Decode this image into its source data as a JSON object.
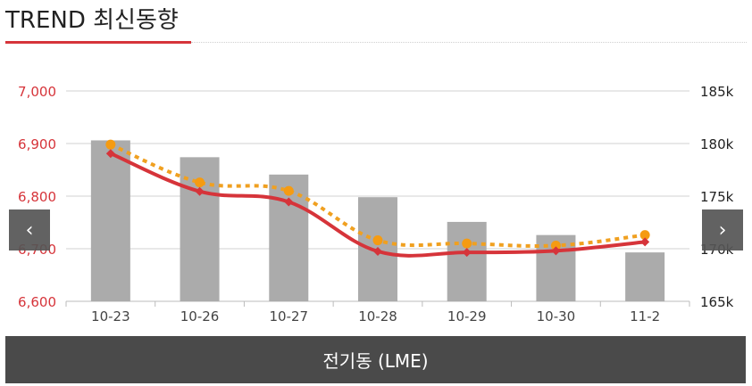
{
  "header": {
    "title": "TREND 최신동향"
  },
  "nav": {
    "prev_icon": "‹",
    "next_icon": "›"
  },
  "footer": {
    "label": "전기동 (LME)"
  },
  "chart_data": {
    "type": "bar+line",
    "categories": [
      "10-23",
      "10-26",
      "10-27",
      "10-28",
      "10-29",
      "10-30",
      "11-2"
    ],
    "y_left": {
      "min": 6600,
      "max": 7000,
      "ticks": [
        "6,600",
        "6,700",
        "6,800",
        "6,900",
        "7,000"
      ],
      "color": "#d6343a"
    },
    "y_right": {
      "min": 165,
      "max": 185,
      "ticks": [
        "165k",
        "170k",
        "175k",
        "180k",
        "185k"
      ],
      "color": "#222222"
    },
    "grid": true,
    "series": [
      {
        "type": "bar",
        "axis": "left",
        "color": "#ababab",
        "values": [
          6906,
          6874,
          6841,
          6798,
          6751,
          6726,
          6693
        ]
      },
      {
        "type": "line",
        "axis": "left",
        "style": "solid",
        "color": "#d6343a",
        "marker": "diamond",
        "values": [
          6881,
          6809,
          6789,
          6695,
          6693,
          6696,
          6713
        ]
      },
      {
        "type": "line",
        "axis": "right",
        "style": "dotted",
        "color": "#f0a020",
        "marker": "circle",
        "values": [
          179.9,
          176.3,
          175.5,
          170.8,
          170.5,
          170.3,
          171.3
        ]
      }
    ]
  }
}
